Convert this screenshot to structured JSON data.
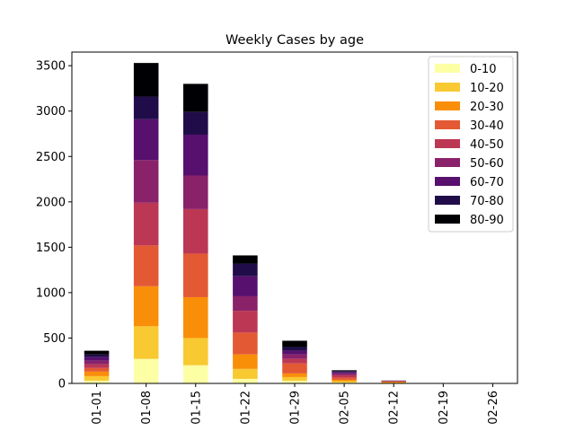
{
  "chart_data": {
    "type": "bar",
    "stacked": true,
    "title": "Weekly Cases by age",
    "xlabel": "",
    "ylabel": "",
    "categories": [
      "01-01",
      "01-08",
      "01-15",
      "01-22",
      "01-29",
      "02-05",
      "02-12",
      "02-19",
      "02-26"
    ],
    "ylim": [
      0,
      3650
    ],
    "yticks": [
      0,
      500,
      1000,
      1500,
      2000,
      2500,
      3000,
      3500
    ],
    "grid": false,
    "legend_position": "top-right",
    "series": [
      {
        "name": "0-10",
        "color": "#fcffa4",
        "values": [
          30,
          270,
          200,
          50,
          30,
          10,
          5,
          0,
          0
        ]
      },
      {
        "name": "10-20",
        "color": "#f9c932",
        "values": [
          50,
          360,
          300,
          110,
          40,
          15,
          5,
          0,
          0
        ]
      },
      {
        "name": "20-30",
        "color": "#f98e09",
        "values": [
          50,
          440,
          450,
          160,
          40,
          15,
          5,
          0,
          0
        ]
      },
      {
        "name": "30-40",
        "color": "#e35933",
        "values": [
          40,
          450,
          480,
          240,
          110,
          25,
          5,
          0,
          0
        ]
      },
      {
        "name": "40-50",
        "color": "#bc3754",
        "values": [
          40,
          470,
          490,
          240,
          50,
          25,
          5,
          0,
          0
        ]
      },
      {
        "name": "50-60",
        "color": "#8a226a",
        "values": [
          40,
          470,
          370,
          160,
          50,
          20,
          3,
          0,
          0
        ]
      },
      {
        "name": "60-70",
        "color": "#57106e",
        "values": [
          40,
          450,
          450,
          220,
          40,
          15,
          2,
          0,
          0
        ]
      },
      {
        "name": "70-80",
        "color": "#210c4a",
        "values": [
          30,
          250,
          250,
          140,
          40,
          10,
          1,
          0,
          0
        ]
      },
      {
        "name": "80-90",
        "color": "#000004",
        "values": [
          40,
          370,
          310,
          90,
          70,
          10,
          1,
          0,
          0
        ]
      }
    ]
  }
}
